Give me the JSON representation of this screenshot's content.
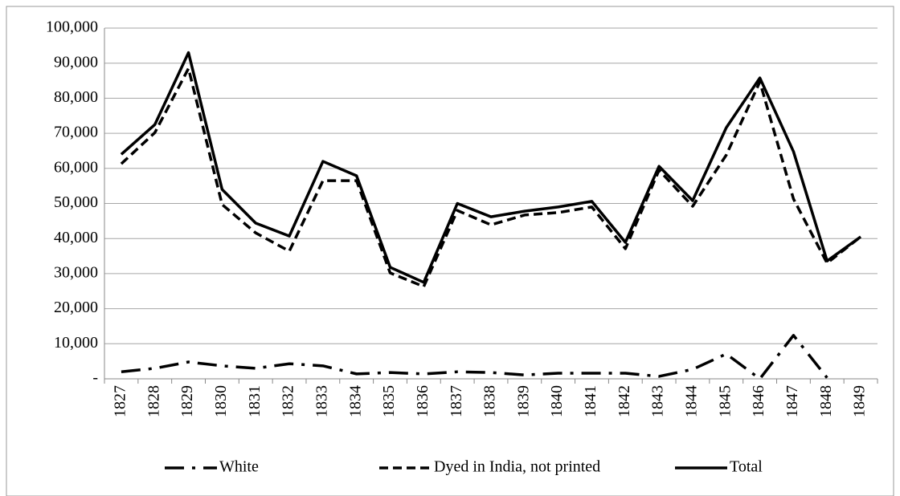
{
  "chart_data": {
    "type": "line",
    "categories": [
      "1827",
      "1828",
      "1829",
      "1830",
      "1831",
      "1832",
      "1833",
      "1834",
      "1835",
      "1836",
      "1837",
      "1838",
      "1839",
      "1840",
      "1841",
      "1842",
      "1843",
      "1844",
      "1845",
      "1846",
      "1847",
      "1848",
      "1849"
    ],
    "series": [
      {
        "name": "White",
        "color": "#000000",
        "dash": "dash-dot",
        "values": [
          2000,
          3000,
          4800,
          3700,
          3000,
          4300,
          3700,
          1400,
          1800,
          1400,
          2000,
          1800,
          1100,
          1600,
          1600,
          1600,
          700,
          2700,
          7100,
          0,
          12400,
          300,
          null
        ]
      },
      {
        "name": "Dyed in India, not printed",
        "color": "#000000",
        "dash": "dash",
        "values": [
          61300,
          70200,
          88500,
          49700,
          41600,
          36400,
          56500,
          56500,
          30200,
          26300,
          48000,
          43900,
          46700,
          47400,
          49000,
          37100,
          59500,
          49200,
          63800,
          84700,
          51300,
          33000,
          40500
        ]
      },
      {
        "name": "Total",
        "color": "#000000",
        "dash": "solid",
        "values": [
          64000,
          72500,
          93000,
          54000,
          44400,
          40700,
          62000,
          57900,
          31800,
          27500,
          50000,
          46200,
          47800,
          49000,
          50600,
          38900,
          60600,
          50800,
          71600,
          85800,
          64800,
          33600,
          40500
        ]
      }
    ],
    "ylim": [
      0,
      100000
    ],
    "yticks": [
      {
        "value": 0,
        "label": "-"
      },
      {
        "value": 10000,
        "label": "10,000"
      },
      {
        "value": 20000,
        "label": "20,000"
      },
      {
        "value": 30000,
        "label": "30,000"
      },
      {
        "value": 40000,
        "label": "40,000"
      },
      {
        "value": 50000,
        "label": "50,000"
      },
      {
        "value": 60000,
        "label": "60,000"
      },
      {
        "value": 70000,
        "label": "70,000"
      },
      {
        "value": 80000,
        "label": "80,000"
      },
      {
        "value": 90000,
        "label": "90,000"
      },
      {
        "value": 100000,
        "label": "100,000"
      }
    ],
    "grid": true,
    "legend": "bottom"
  }
}
